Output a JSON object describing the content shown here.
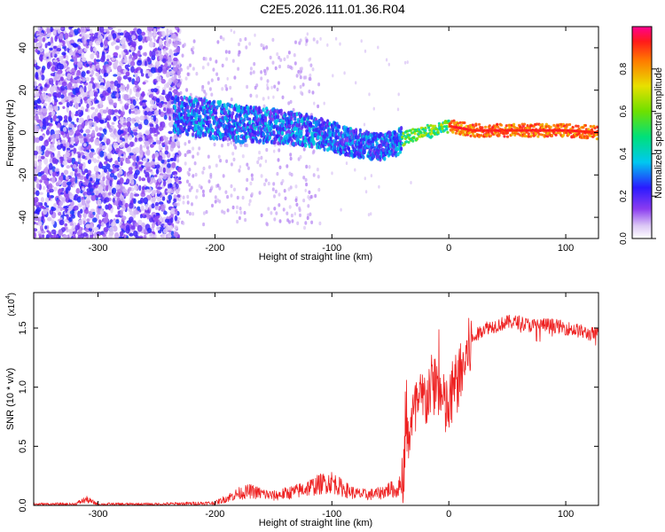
{
  "figure_title": "C2E5.2026.111.01.36.R04",
  "colors": {
    "snr_line": "#ee2222",
    "axis": "#000000",
    "background": "#ffffff"
  },
  "chart_data": [
    {
      "type": "heatmap",
      "title": "C2E5.2026.111.01.36.R04",
      "xlabel": "Height of straight line (km)",
      "ylabel": "Frequency (Hz)",
      "xlim": [
        -355,
        128
      ],
      "ylim": [
        -50,
        50
      ],
      "xticks": [
        -300,
        -200,
        -100,
        0,
        100
      ],
      "yticks": [
        -40,
        -20,
        0,
        20,
        40
      ],
      "xtick_labels": [
        "-300",
        "-200",
        "-100",
        "0",
        "100"
      ],
      "ytick_labels": [
        "-40",
        "-20",
        "0",
        "20",
        "40"
      ],
      "colorbar": {
        "label": "Normalized spectral amplitude",
        "range": [
          0,
          1
        ],
        "ticks": [
          0.0,
          0.2,
          0.4,
          0.6,
          0.8
        ],
        "tick_labels": [
          "0.0",
          "0.2",
          "0.4",
          "0.6",
          "0.8"
        ],
        "colormap": "rainbow (purple-blue-cyan-green-yellow-red-magenta)"
      },
      "ridge_track": {
        "x": [
          -230,
          -200,
          -180,
          -150,
          -120,
          -100,
          -80,
          -60,
          -45,
          -35,
          -25,
          -10,
          0,
          20,
          60,
          100,
          128
        ],
        "y": [
          8,
          6,
          4,
          3,
          1,
          -2,
          -5,
          -7,
          -5,
          -2,
          0,
          1,
          3,
          1,
          1,
          1,
          0
        ]
      }
    },
    {
      "type": "line",
      "xlabel": "Height of straight line (km)",
      "ylabel": "SNR (10 * v/v)",
      "multiplier_label": "(x10",
      "multiplier_exp": "4",
      "multiplier_close": ")",
      "xlim": [
        -355,
        128
      ],
      "ylim": [
        0,
        1.8
      ],
      "xticks": [
        -300,
        -200,
        -100,
        0,
        100
      ],
      "yticks": [
        0.0,
        0.5,
        1.0,
        1.5
      ],
      "xtick_labels": [
        "-300",
        "-200",
        "-100",
        "0",
        "100"
      ],
      "ytick_labels": [
        "0.0",
        "0.5",
        "1.0",
        "1.5"
      ],
      "series": [
        {
          "name": "SNR",
          "x": [
            -355,
            -320,
            -310,
            -300,
            -250,
            -200,
            -190,
            -180,
            -170,
            -160,
            -150,
            -140,
            -130,
            -120,
            -110,
            -100,
            -90,
            -80,
            -70,
            -60,
            -50,
            -45,
            -40,
            -35,
            -30,
            -25,
            -20,
            -15,
            -10,
            -5,
            0,
            5,
            10,
            15,
            20,
            25,
            30,
            40,
            50,
            60,
            70,
            80,
            90,
            100,
            110,
            120,
            128
          ],
          "values": [
            0.01,
            0.01,
            0.05,
            0.01,
            0.01,
            0.02,
            0.06,
            0.1,
            0.12,
            0.1,
            0.08,
            0.1,
            0.12,
            0.15,
            0.18,
            0.2,
            0.14,
            0.1,
            0.09,
            0.1,
            0.14,
            0.12,
            0.2,
            0.6,
            0.75,
            0.85,
            0.9,
            1.0,
            1.05,
            0.85,
            0.8,
            1.0,
            1.1,
            1.25,
            1.4,
            1.45,
            1.5,
            1.52,
            1.55,
            1.55,
            1.52,
            1.53,
            1.52,
            1.5,
            1.48,
            1.45,
            1.45
          ]
        }
      ]
    }
  ]
}
